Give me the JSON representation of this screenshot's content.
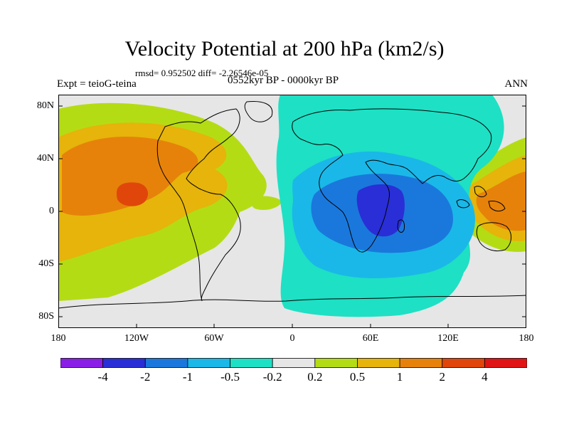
{
  "title": "Velocity Potential at 200 hPa (km2/s)",
  "stats": "rmsd= 0.952502 diff= -2.26546e-05",
  "left_label": "Expt = teioG-teina",
  "center_label": "0552kyr BP - 0000kyr BP",
  "right_label": "ANN",
  "lat_ticks": [
    "80N",
    "40N",
    "0",
    "40S",
    "80S"
  ],
  "lon_ticks": [
    "180",
    "120W",
    "60W",
    "0",
    "60E",
    "120E",
    "180"
  ],
  "colorbar": {
    "labels": [
      "-4",
      "-2",
      "-1",
      "-0.5",
      "-0.2",
      "0.2",
      "0.5",
      "1",
      "2",
      "4"
    ],
    "colors": [
      "#8a1ee6",
      "#2a2ed6",
      "#1a78dc",
      "#1ab8e8",
      "#1ee0c4",
      "#e6e6e6",
      "#b4dc14",
      "#e6b40a",
      "#e6820a",
      "#e0460a",
      "#e01414"
    ]
  }
}
